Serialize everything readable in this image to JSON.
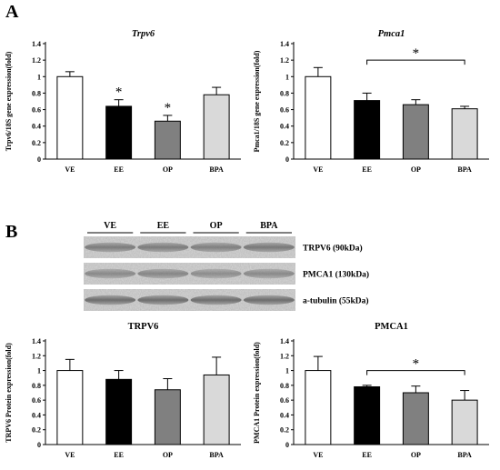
{
  "panel_labels": {
    "a": "A",
    "b": "B"
  },
  "western_blot": {
    "lanes": [
      "VE",
      "EE",
      "OP",
      "BPA"
    ],
    "bands": [
      "TRPV6 (90kDa)",
      "PMCA1 (130kDa)",
      "a-tubulin (55kDa)"
    ]
  },
  "colors": {
    "VE": "#ffffff",
    "EE": "#000000",
    "OP": "#808080",
    "BPA": "#d9d9d9"
  },
  "chart_data": [
    {
      "type": "bar",
      "title": "Trpv6",
      "title_italic": true,
      "ylabel": "Trpv6/18S gene expression(fold)",
      "categories": [
        "VE",
        "EE",
        "OP",
        "BPA"
      ],
      "values": [
        1.0,
        0.64,
        0.46,
        0.78
      ],
      "errors": [
        0.06,
        0.08,
        0.07,
        0.09
      ],
      "ylim": [
        0,
        1.4
      ],
      "yticks": [
        "0",
        "0.2",
        "0.4",
        "0.6",
        "0.8",
        "1",
        "1.2",
        "1.4"
      ],
      "annotations": [
        {
          "text": "*",
          "category": "EE"
        },
        {
          "text": "*",
          "category": "OP"
        }
      ],
      "bracket": null
    },
    {
      "type": "bar",
      "title": "Pmca1",
      "title_italic": true,
      "ylabel": "Pmca1/18S gene expression(fold)",
      "categories": [
        "VE",
        "EE",
        "OP",
        "BPA"
      ],
      "values": [
        1.0,
        0.71,
        0.66,
        0.61
      ],
      "errors": [
        0.11,
        0.09,
        0.06,
        0.03
      ],
      "ylim": [
        0,
        1.4
      ],
      "yticks": [
        "0",
        "0.2",
        "0.4",
        "0.6",
        "0.8",
        "1",
        "1.2",
        "1.4"
      ],
      "annotations": [],
      "bracket": {
        "from": "EE",
        "to": "BPA",
        "value": 1.2,
        "text": "*"
      }
    },
    {
      "type": "bar",
      "title": "TRPV6",
      "title_italic": false,
      "ylabel": "TRPV6 Protein expression(fold)",
      "categories": [
        "VE",
        "EE",
        "OP",
        "BPA"
      ],
      "values": [
        1.0,
        0.88,
        0.74,
        0.94
      ],
      "errors": [
        0.15,
        0.12,
        0.15,
        0.24
      ],
      "ylim": [
        0,
        1.4
      ],
      "yticks": [
        "0",
        "0.2",
        "0.4",
        "0.6",
        "0.8",
        "1",
        "1.2",
        "1.4"
      ],
      "annotations": [],
      "bracket": null
    },
    {
      "type": "bar",
      "title": "PMCA1",
      "title_italic": false,
      "ylabel": "PMCA1 Protein expression(fold)",
      "categories": [
        "VE",
        "EE",
        "OP",
        "BPA"
      ],
      "values": [
        1.0,
        0.78,
        0.7,
        0.6
      ],
      "errors": [
        0.19,
        0.02,
        0.09,
        0.13
      ],
      "ylim": [
        0,
        1.4
      ],
      "yticks": [
        "0",
        "0.2",
        "0.4",
        "0.6",
        "0.8",
        "1",
        "1.2",
        "1.4"
      ],
      "annotations": [],
      "bracket": {
        "from": "EE",
        "to": "BPA",
        "value": 1.0,
        "text": "*"
      }
    }
  ]
}
